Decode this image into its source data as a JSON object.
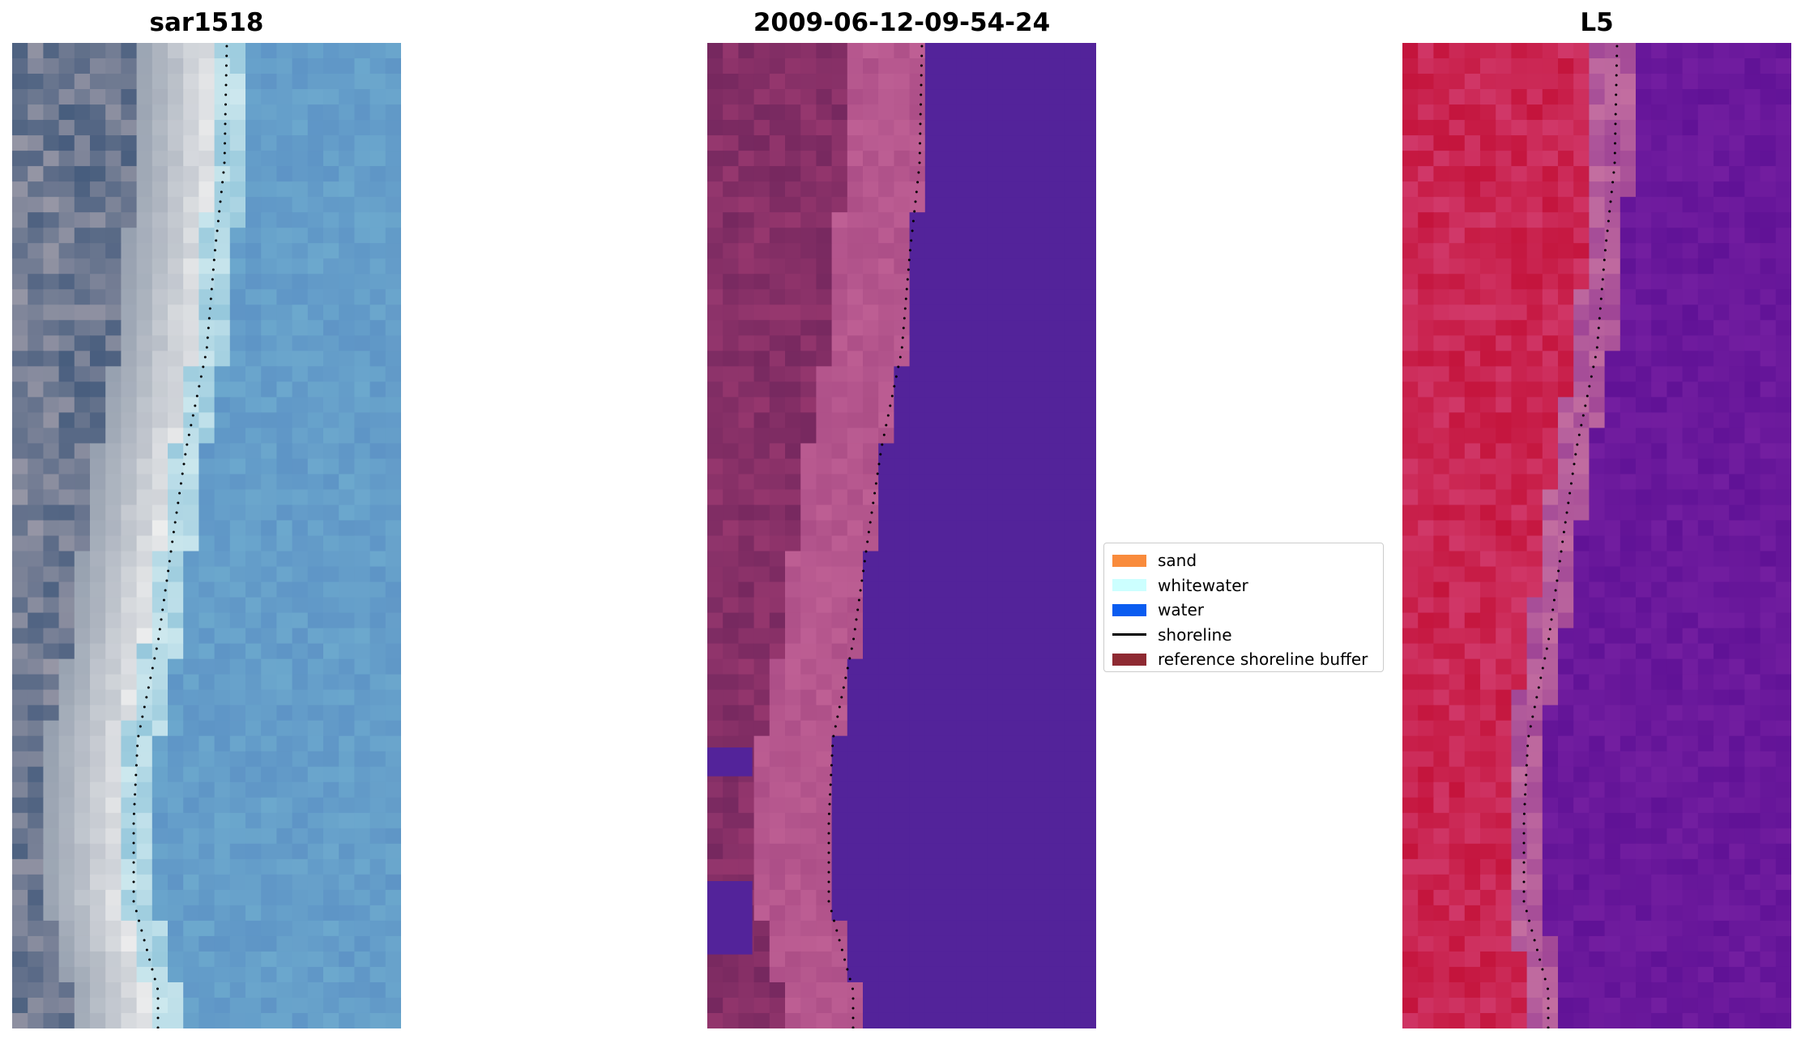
{
  "panels": [
    {
      "title": "sar1518"
    },
    {
      "title": "2009-06-12-09-54-24"
    },
    {
      "title": "L5"
    }
  ],
  "legend": {
    "items": [
      {
        "label": "sand",
        "kind": "patch",
        "color": "#f98b3c"
      },
      {
        "label": "whitewater",
        "kind": "patch",
        "color": "#ccffff"
      },
      {
        "label": "water",
        "kind": "patch",
        "color": "#0a5cf0"
      },
      {
        "label": "shoreline",
        "kind": "line",
        "color": "#000000"
      },
      {
        "label": "reference shoreline buffer",
        "kind": "patch",
        "color": "#8e2a32"
      }
    ]
  },
  "colors": {
    "water_class": "#53239a",
    "shoreline_dots": "#000000"
  }
}
